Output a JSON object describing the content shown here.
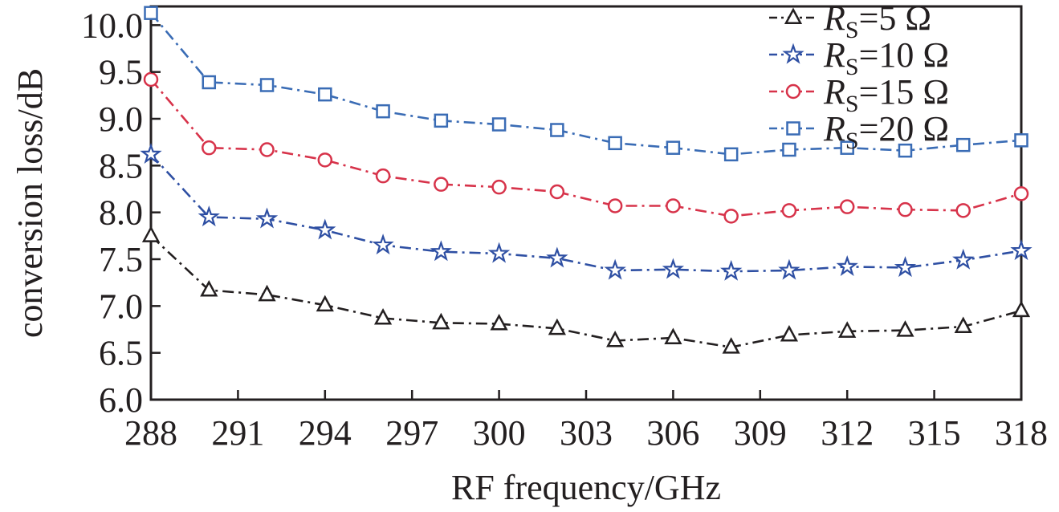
{
  "chart_data": {
    "type": "line",
    "title": "",
    "xlabel": "RF frequency/GHz",
    "ylabel": "conversion loss/dB",
    "xlim": [
      288,
      318
    ],
    "ylim": [
      6.0,
      10.2
    ],
    "xticks": [
      "288",
      "291",
      "294",
      "297",
      "300",
      "303",
      "306",
      "309",
      "312",
      "315",
      "318"
    ],
    "yticks": [
      "6.0",
      "6.5",
      "7.0",
      "7.5",
      "8.0",
      "8.5",
      "9.0",
      "9.5",
      "10.0"
    ],
    "legend_position": "top-right",
    "x": [
      288,
      290,
      292,
      294,
      296,
      298,
      300,
      302,
      304,
      306,
      308,
      310,
      312,
      314,
      316,
      318
    ],
    "series": [
      {
        "name": "RS=5 Ω",
        "label_main": "R",
        "label_sub": "S",
        "label_rest": "=5 Ω",
        "color": "#231f20",
        "marker": "triangle",
        "values": [
          7.75,
          7.17,
          7.12,
          7.01,
          6.87,
          6.82,
          6.81,
          6.76,
          6.63,
          6.66,
          6.56,
          6.69,
          6.73,
          6.74,
          6.78,
          6.95
        ]
      },
      {
        "name": "RS=10 Ω",
        "label_main": "R",
        "label_sub": "S",
        "label_rest": "=10 Ω",
        "color": "#2e4fa3",
        "marker": "star",
        "values": [
          8.62,
          7.95,
          7.93,
          7.81,
          7.65,
          7.58,
          7.56,
          7.51,
          7.38,
          7.39,
          7.37,
          7.38,
          7.42,
          7.41,
          7.49,
          7.59
        ]
      },
      {
        "name": "RS=15 Ω",
        "label_main": "R",
        "label_sub": "S",
        "label_rest": "=15 Ω",
        "color": "#d7334a",
        "marker": "circle",
        "values": [
          9.42,
          8.69,
          8.67,
          8.56,
          8.39,
          8.3,
          8.27,
          8.22,
          8.07,
          8.07,
          7.96,
          8.02,
          8.06,
          8.03,
          8.02,
          8.2
        ]
      },
      {
        "name": "RS=20 Ω",
        "label_main": "R",
        "label_sub": "S",
        "label_rest": "=20 Ω",
        "color": "#3a6cb5",
        "marker": "square",
        "values": [
          10.13,
          9.39,
          9.36,
          9.26,
          9.08,
          8.98,
          8.94,
          8.88,
          8.74,
          8.69,
          8.62,
          8.67,
          8.69,
          8.66,
          8.72,
          8.77
        ]
      }
    ]
  }
}
